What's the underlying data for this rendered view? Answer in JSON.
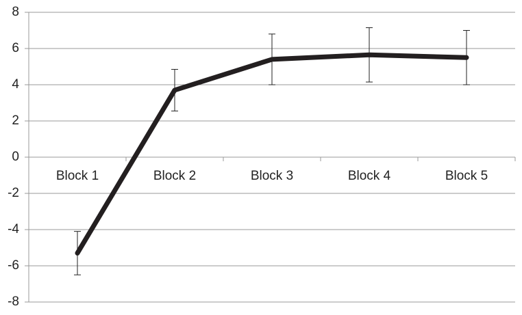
{
  "chart_data": {
    "type": "line",
    "categories": [
      "Block 1",
      "Block 2",
      "Block 3",
      "Block 4",
      "Block 5"
    ],
    "values": [
      -5.3,
      3.7,
      5.4,
      5.65,
      5.5
    ],
    "errors": [
      1.2,
      1.15,
      1.4,
      1.5,
      1.5
    ],
    "color": "#231f20",
    "ylim": [
      -8,
      8
    ],
    "yticks": [
      -8,
      -6,
      -4,
      -2,
      0,
      2,
      4,
      6,
      8
    ],
    "grid": true
  }
}
